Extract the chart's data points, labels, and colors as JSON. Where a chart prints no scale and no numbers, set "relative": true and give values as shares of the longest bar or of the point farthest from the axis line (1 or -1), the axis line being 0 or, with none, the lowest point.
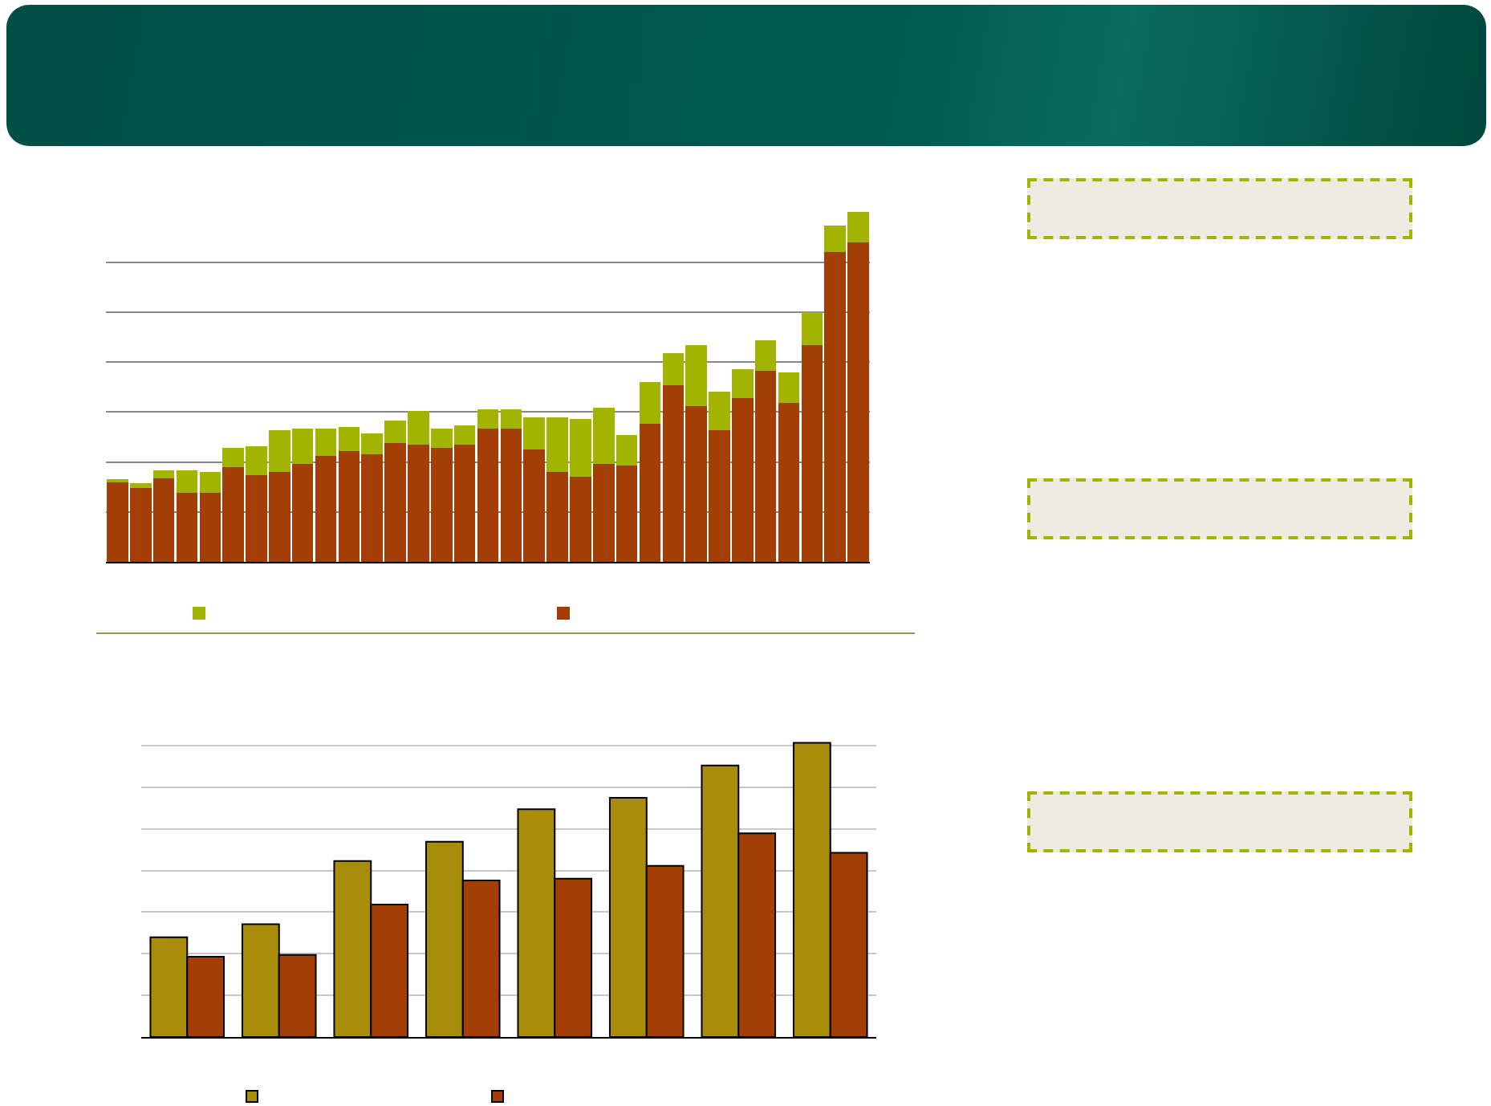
{
  "chart_data": [
    {
      "type": "bar",
      "stacked": true,
      "relative": true,
      "grid": "y",
      "categories": [
        null,
        null,
        null,
        null,
        null,
        null,
        null,
        null,
        null,
        null,
        null,
        null,
        null,
        null,
        null,
        null,
        null,
        null,
        null,
        null,
        null,
        null,
        null,
        null,
        null,
        null,
        null,
        null,
        null,
        null,
        null,
        null,
        null
      ],
      "series": [
        {
          "color": "#a33e05",
          "values": [
            0.227,
            0.211,
            0.239,
            0.198,
            0.198,
            0.271,
            0.248,
            0.257,
            0.28,
            0.303,
            0.317,
            0.308,
            0.34,
            0.335,
            0.326,
            0.335,
            0.381,
            0.381,
            0.322,
            0.257,
            0.243,
            0.28,
            0.276,
            0.395,
            0.505,
            0.446,
            0.377,
            0.469,
            0.547,
            0.455,
            0.62,
            0.887,
            0.914
          ]
        },
        {
          "color": "#a3b400",
          "values": [
            0.009,
            0.014,
            0.023,
            0.064,
            0.06,
            0.055,
            0.083,
            0.119,
            0.101,
            0.078,
            0.069,
            0.06,
            0.064,
            0.096,
            0.055,
            0.055,
            0.055,
            0.055,
            0.092,
            0.156,
            0.165,
            0.161,
            0.087,
            0.119,
            0.092,
            0.175,
            0.11,
            0.083,
            0.087,
            0.087,
            0.095,
            0.074,
            0.086
          ]
        }
      ]
    },
    {
      "type": "bar",
      "relative": true,
      "grid": "y",
      "categories": [
        null,
        null,
        null,
        null,
        null,
        null,
        null,
        null
      ],
      "series": [
        {
          "color": "#a88d0a",
          "values": [
            0.339,
            0.383,
            0.598,
            0.664,
            0.774,
            0.813,
            0.923,
            1
          ]
        },
        {
          "color": "#a33e05",
          "values": [
            0.273,
            0.279,
            0.45,
            0.532,
            0.538,
            0.582,
            0.692,
            0.626
          ]
        }
      ]
    }
  ]
}
